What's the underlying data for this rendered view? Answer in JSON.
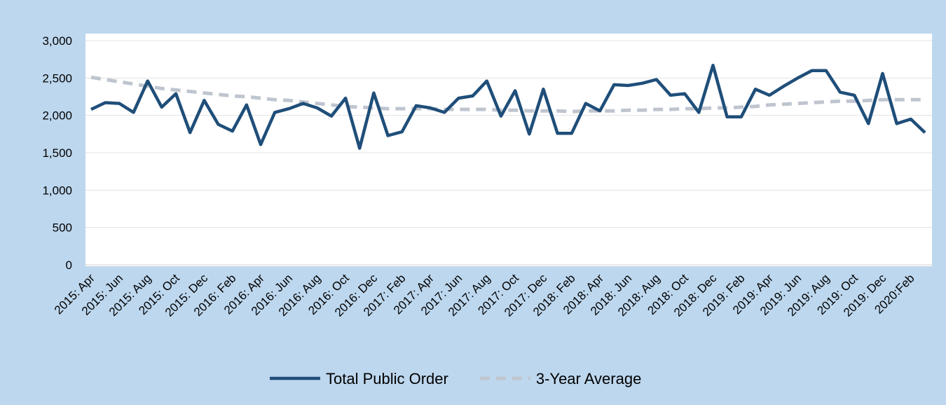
{
  "chart_data": {
    "type": "line",
    "categories": [
      "2015: Apr",
      null,
      "2015: Jun",
      null,
      "2015: Aug",
      null,
      "2015: Oct",
      null,
      "2015: Dec",
      null,
      "2016: Feb",
      null,
      "2016: Apr",
      null,
      "2016: Jun",
      null,
      "2016: Aug",
      null,
      "2016: Oct",
      null,
      "2016: Dec",
      null,
      "2017: Feb",
      null,
      "2017: Apr",
      null,
      "2017: Jun",
      null,
      "2017: Aug",
      null,
      "2017: Oct",
      null,
      "2017: Dec",
      null,
      "2018: Feb",
      null,
      "2018: Apr",
      null,
      "2018: Jun",
      null,
      "2018: Aug",
      null,
      "2018: Oct",
      null,
      "2018: Dec",
      null,
      "2019: Feb",
      null,
      "2019: Apr",
      null,
      "2019: Jun",
      null,
      "2019: Aug",
      null,
      "2019: Oct",
      null,
      "2019: Dec",
      null,
      "2020:Feb",
      null
    ],
    "series": [
      {
        "name": "Total Public Order",
        "color": "#1f4e79",
        "dashed": false,
        "values": [
          2080,
          2170,
          2160,
          2040,
          2460,
          2110,
          2290,
          1770,
          2200,
          1880,
          1790,
          2140,
          1610,
          2040,
          2090,
          2160,
          2100,
          1990,
          2230,
          1560,
          2300,
          1730,
          1780,
          2130,
          2100,
          2040,
          2230,
          2260,
          2460,
          1990,
          2330,
          1750,
          2350,
          1760,
          1760,
          2160,
          2060,
          2410,
          2400,
          2430,
          2480,
          2270,
          2290,
          2040,
          2670,
          1980,
          1980,
          2350,
          2270,
          2390,
          2500,
          2600,
          2600,
          2310,
          2270,
          1890,
          2560,
          1890,
          1950,
          1770
        ]
      },
      {
        "name": "3-Year Average",
        "color": "#bfc5cf",
        "dashed": true,
        "values": [
          2510,
          2480,
          2450,
          2420,
          2390,
          2360,
          2340,
          2320,
          2300,
          2280,
          2260,
          2250,
          2230,
          2210,
          2200,
          2180,
          2160,
          2140,
          2120,
          2110,
          2100,
          2090,
          2090,
          2090,
          2090,
          2080,
          2080,
          2080,
          2080,
          2070,
          2070,
          2060,
          2060,
          2060,
          2050,
          2060,
          2060,
          2060,
          2070,
          2070,
          2080,
          2080,
          2090,
          2090,
          2100,
          2100,
          2110,
          2120,
          2140,
          2150,
          2160,
          2170,
          2180,
          2190,
          2190,
          2200,
          2210,
          2210,
          2210,
          2210
        ]
      }
    ],
    "ylim": [
      0,
      3000
    ],
    "yticks": [
      0,
      500,
      {
        "value": 1000,
        "label": "1,000"
      },
      {
        "value": 1500,
        "label": "1,500"
      },
      {
        "value": 2000,
        "label": "2,000"
      },
      {
        "value": 2500,
        "label": "2,500"
      },
      {
        "value": 3000,
        "label": "3,000"
      }
    ],
    "grid": true,
    "legend": "bottom"
  }
}
